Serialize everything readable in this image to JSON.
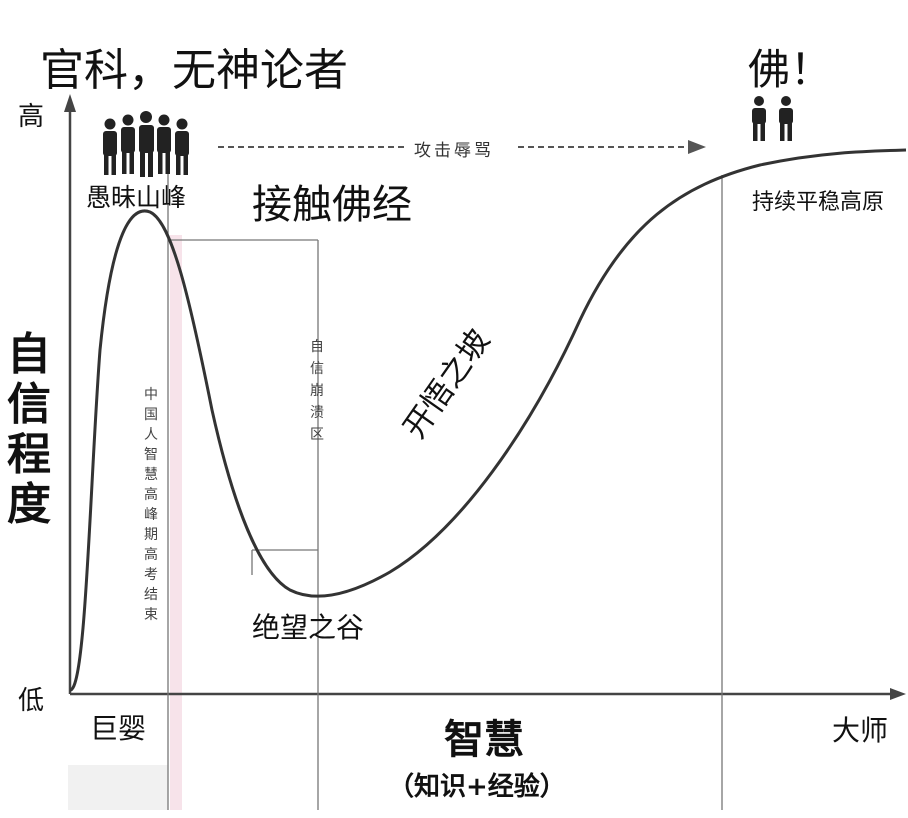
{
  "overlay": {
    "top_left_caption": "官科，无神论者",
    "top_right_caption": "佛！",
    "center_caption": "接触佛经"
  },
  "axes": {
    "y_title": "自信程度",
    "y_high": "高",
    "y_low": "低",
    "x_title": "智慧",
    "x_subtitle": "（知识+经验）",
    "x_left": "巨婴",
    "x_right": "大师"
  },
  "stages": {
    "peak": "愚昧山峰",
    "valley": "绝望之谷",
    "slope": "开悟之坡",
    "plateau": "持续平稳高原"
  },
  "annotations": {
    "arrow_label": "攻击辱骂",
    "vertical_note_1": "中国人智慧高峰期高考结束",
    "vertical_note_2": "自信崩溃区"
  },
  "icons": {
    "crowd": "crowd-icon",
    "pair": "two-people-icon"
  },
  "colors": {
    "curve": "#333333",
    "axis": "#444444",
    "guide": "#777777",
    "highlight": "#f7e3ea"
  }
}
